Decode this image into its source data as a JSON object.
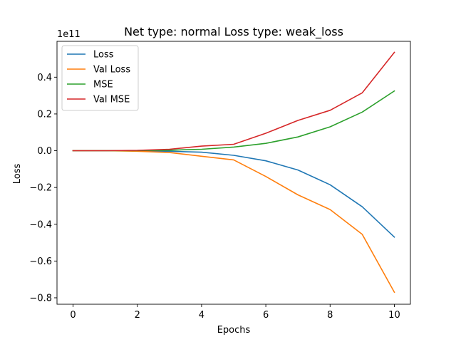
{
  "chart_data": {
    "type": "line",
    "title": "Net type: normal Loss type: weak_loss",
    "xlabel": "Epochs",
    "ylabel": "Loss",
    "y_offset_label": "1e11",
    "y_scale_factor": 100000000000.0,
    "xlim": [
      -0.5,
      10.5
    ],
    "ylim": [
      -0.835,
      0.595
    ],
    "x_ticks": [
      0,
      2,
      4,
      6,
      8,
      10
    ],
    "y_ticks": [
      -0.8,
      -0.6,
      -0.4,
      -0.2,
      0.0,
      0.2,
      0.4
    ],
    "y_tick_labels": [
      "−0.8",
      "−0.6",
      "−0.4",
      "−0.2",
      "0.0",
      "0.2",
      "0.4"
    ],
    "grid": false,
    "legend_position": "top-left",
    "x": [
      0,
      1,
      2,
      3,
      4,
      5,
      6,
      7,
      8,
      9,
      10
    ],
    "series": [
      {
        "name": "Loss",
        "color": "#1f77b4",
        "values": [
          0.0,
          0.0,
          -0.001,
          -0.003,
          -0.008,
          -0.025,
          -0.055,
          -0.105,
          -0.185,
          -0.305,
          -0.47
        ]
      },
      {
        "name": "Val Loss",
        "color": "#ff7f0e",
        "values": [
          0.0,
          0.0,
          -0.003,
          -0.01,
          -0.03,
          -0.05,
          -0.14,
          -0.24,
          -0.32,
          -0.455,
          -0.77
        ]
      },
      {
        "name": "MSE",
        "color": "#2ca02c",
        "values": [
          0.0,
          0.0,
          0.001,
          0.003,
          0.008,
          0.02,
          0.04,
          0.075,
          0.13,
          0.21,
          0.325
        ]
      },
      {
        "name": "Val MSE",
        "color": "#d62728",
        "values": [
          0.0,
          0.0,
          0.002,
          0.008,
          0.025,
          0.035,
          0.095,
          0.165,
          0.22,
          0.315,
          0.535
        ]
      }
    ]
  }
}
